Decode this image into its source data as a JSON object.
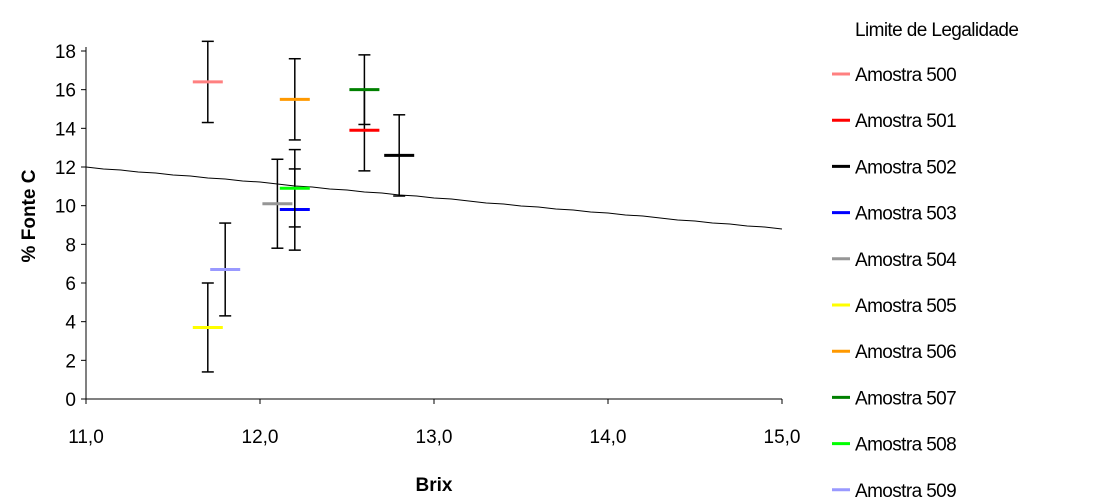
{
  "chart_data": {
    "type": "scatter",
    "title": "",
    "xlabel": "Brix",
    "ylabel": "% Fonte C",
    "xlim": [
      11.0,
      15.0
    ],
    "ylim": [
      0,
      18
    ],
    "x_ticks": [
      "11,0",
      "12,0",
      "13,0",
      "14,0",
      "15,0"
    ],
    "y_ticks": [
      "0",
      "2",
      "4",
      "6",
      "8",
      "10",
      "12",
      "14",
      "16",
      "18"
    ],
    "grid": false,
    "legend_position": "right",
    "limit_line": {
      "name": "Limite de Legalidade",
      "color": "#000000",
      "x": [
        11.0,
        15.0
      ],
      "y": [
        12.0,
        8.8
      ]
    },
    "series": [
      {
        "name": "Amostra 500",
        "color": "#ff8080",
        "x": 11.7,
        "y": 16.4,
        "err": 2.1
      },
      {
        "name": "Amostra 501",
        "color": "#ff0000",
        "x": 12.6,
        "y": 13.9,
        "err": 2.1
      },
      {
        "name": "Amostra 502",
        "color": "#000000",
        "x": 12.8,
        "y": 12.6,
        "err": 2.1
      },
      {
        "name": "Amostra 503",
        "color": "#0000ff",
        "x": 12.2,
        "y": 9.8,
        "err": 2.1
      },
      {
        "name": "Amostra 504",
        "color": "#969696",
        "x": 12.1,
        "y": 10.1,
        "err": 2.3
      },
      {
        "name": "Amostra 505",
        "color": "#ffff00",
        "x": 11.7,
        "y": 3.7,
        "err": 2.3
      },
      {
        "name": "Amostra 506",
        "color": "#ff9900",
        "x": 12.2,
        "y": 15.5,
        "err": 2.1
      },
      {
        "name": "Amostra 507",
        "color": "#008000",
        "x": 12.6,
        "y": 16.0,
        "err": 1.8
      },
      {
        "name": "Amostra 508",
        "color": "#00ff00",
        "x": 12.2,
        "y": 10.9,
        "err": 2.0
      },
      {
        "name": "Amostra 509",
        "color": "#9999ff",
        "x": 11.8,
        "y": 6.7,
        "err": 2.4
      }
    ]
  }
}
